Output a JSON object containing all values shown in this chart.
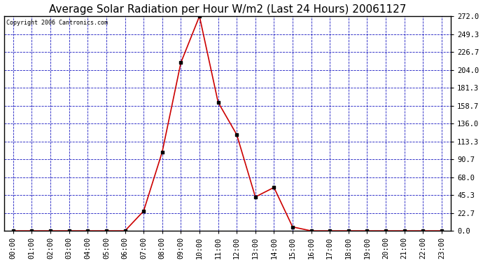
{
  "title": "Average Solar Radiation per Hour W/m2 (Last 24 Hours) 20061127",
  "copyright": "Copyright 2006 Cantronics.com",
  "hours": [
    "00:00",
    "01:00",
    "02:00",
    "03:00",
    "04:00",
    "05:00",
    "06:00",
    "07:00",
    "08:00",
    "09:00",
    "10:00",
    "11:00",
    "12:00",
    "13:00",
    "14:00",
    "15:00",
    "16:00",
    "17:00",
    "18:00",
    "19:00",
    "20:00",
    "21:00",
    "22:00",
    "23:00"
  ],
  "values": [
    0.0,
    0.0,
    0.0,
    0.0,
    0.0,
    0.0,
    0.0,
    25.0,
    100.0,
    213.0,
    272.0,
    163.0,
    122.0,
    43.0,
    55.0,
    5.0,
    0.0,
    0.0,
    0.0,
    0.0,
    0.0,
    0.0,
    0.0,
    0.0
  ],
  "yticks": [
    0.0,
    22.7,
    45.3,
    68.0,
    90.7,
    113.3,
    136.0,
    158.7,
    181.3,
    204.0,
    226.7,
    249.3,
    272.0
  ],
  "ymax": 272.0,
  "ymin": 0.0,
  "line_color": "#cc0000",
  "marker_color": "#000000",
  "plot_bg": "#ffffff",
  "fig_bg": "#ffffff",
  "grid_color": "#0000bb",
  "title_fontsize": 11,
  "copyright_fontsize": 6,
  "tick_fontsize": 7.5
}
